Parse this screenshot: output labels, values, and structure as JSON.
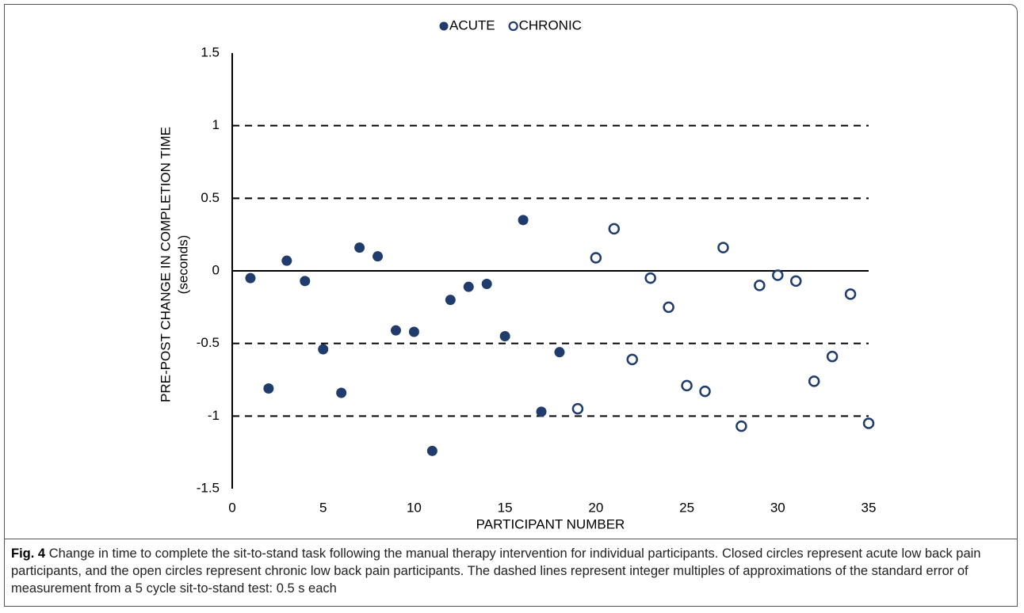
{
  "chart_data": {
    "type": "scatter",
    "xlabel": "PARTICIPANT NUMBER",
    "ylabel": [
      "PRE-POST CHANGE IN COMPLETION TIME",
      "(seconds)"
    ],
    "xlim": [
      0,
      35
    ],
    "xticks": [
      0,
      5,
      10,
      15,
      20,
      25,
      30,
      35
    ],
    "ylim": [
      -1.5,
      1.5
    ],
    "yticks": [
      1.5,
      1,
      0.5,
      0,
      -0.5,
      -1,
      -1.5
    ],
    "legend": "top",
    "hlines": [
      {
        "value": 1,
        "style": "dashed"
      },
      {
        "value": 0.5,
        "style": "dashed"
      },
      {
        "value": 0,
        "style": "solid"
      },
      {
        "value": -0.5,
        "style": "dashed"
      },
      {
        "value": -1,
        "style": "dashed"
      }
    ],
    "series": [
      {
        "name": "ACUTE",
        "color": "#1f3c6c",
        "filled": true,
        "x": [
          1,
          2,
          3,
          4,
          5,
          6,
          7,
          8,
          9,
          10,
          11,
          12,
          13,
          14,
          15,
          16,
          17,
          18
        ],
        "values": [
          -0.05,
          -0.81,
          0.07,
          -0.07,
          -0.54,
          -0.84,
          0.16,
          0.1,
          -0.41,
          -0.42,
          -1.24,
          -0.2,
          -0.11,
          -0.09,
          -0.45,
          0.35,
          -0.97,
          -0.56
        ]
      },
      {
        "name": "CHRONIC",
        "color": "#1f3c6c",
        "filled": false,
        "x": [
          19,
          20,
          21,
          22,
          23,
          24,
          25,
          26,
          27,
          28,
          29,
          30,
          31,
          32,
          33,
          34,
          35
        ],
        "values": [
          -0.95,
          0.09,
          0.29,
          -0.61,
          -0.05,
          -0.25,
          -0.79,
          -0.83,
          0.16,
          -1.07,
          -0.1,
          -0.03,
          -0.07,
          -0.76,
          -0.59,
          -0.16,
          -1.05
        ]
      }
    ]
  },
  "caption": {
    "label": "Fig. 4",
    "text": "Change in time to complete the sit-to-stand task following the manual therapy intervention for individual participants. Closed circles represent acute low back pain participants, and the open circles represent chronic low back pain participants. The dashed lines represent integer multiples of approximations of the standard error of measurement from a 5 cycle sit-to-stand test: 0.5 s each"
  }
}
